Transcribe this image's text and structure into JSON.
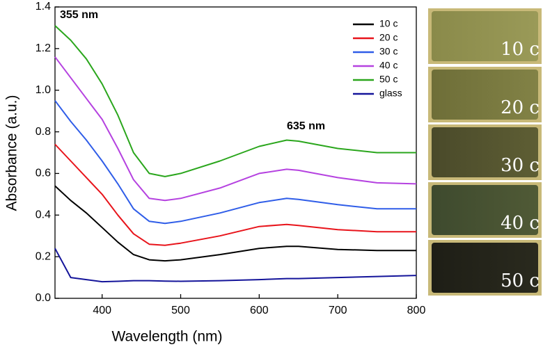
{
  "chart_data": {
    "type": "line",
    "xlabel": "Wavelength (nm)",
    "ylabel": "Absorbance (a.u.)",
    "annotations": [
      "355 nm",
      "635 nm"
    ],
    "x": [
      340,
      360,
      380,
      400,
      420,
      440,
      460,
      480,
      500,
      550,
      600,
      635,
      650,
      700,
      750,
      800
    ],
    "series": [
      {
        "name": "10 c",
        "color": "#000000",
        "values": [
          0.54,
          0.47,
          0.41,
          0.34,
          0.27,
          0.21,
          0.185,
          0.18,
          0.185,
          0.21,
          0.24,
          0.25,
          0.25,
          0.235,
          0.23,
          0.23
        ]
      },
      {
        "name": "20 c",
        "color": "#e8141b",
        "values": [
          0.74,
          0.66,
          0.58,
          0.5,
          0.4,
          0.31,
          0.26,
          0.255,
          0.265,
          0.3,
          0.345,
          0.355,
          0.35,
          0.33,
          0.32,
          0.32
        ]
      },
      {
        "name": "30 c",
        "color": "#2f5de8",
        "values": [
          0.95,
          0.85,
          0.76,
          0.66,
          0.55,
          0.43,
          0.37,
          0.36,
          0.37,
          0.41,
          0.46,
          0.48,
          0.475,
          0.45,
          0.43,
          0.43
        ]
      },
      {
        "name": "40 c",
        "color": "#b542e0",
        "values": [
          1.16,
          1.06,
          0.96,
          0.86,
          0.72,
          0.57,
          0.48,
          0.47,
          0.48,
          0.53,
          0.6,
          0.62,
          0.615,
          0.58,
          0.555,
          0.55
        ]
      },
      {
        "name": "50 c",
        "color": "#2aa61c",
        "values": [
          1.31,
          1.24,
          1.15,
          1.03,
          0.88,
          0.7,
          0.6,
          0.585,
          0.6,
          0.66,
          0.73,
          0.76,
          0.755,
          0.72,
          0.7,
          0.7
        ]
      },
      {
        "name": "glass",
        "color": "#14149a",
        "values": [
          0.24,
          0.1,
          0.09,
          0.08,
          0.082,
          0.085,
          0.085,
          0.083,
          0.082,
          0.085,
          0.09,
          0.095,
          0.095,
          0.1,
          0.105,
          0.11
        ]
      }
    ],
    "xlim": [
      340,
      800
    ],
    "xticks": [
      400,
      500,
      600,
      700,
      800
    ],
    "ylim": [
      0,
      1.4
    ],
    "yticks": [
      {
        "value": 0,
        "label": "0.0"
      },
      0.2,
      0.4,
      0.6,
      0.8,
      {
        "value": 1,
        "label": "1.0"
      },
      1.2,
      1.4
    ],
    "legend": "upper-right",
    "grid": false
  },
  "photo_labels": [
    "10 c",
    "20 c",
    "30 c",
    "40 c",
    "50 c"
  ]
}
